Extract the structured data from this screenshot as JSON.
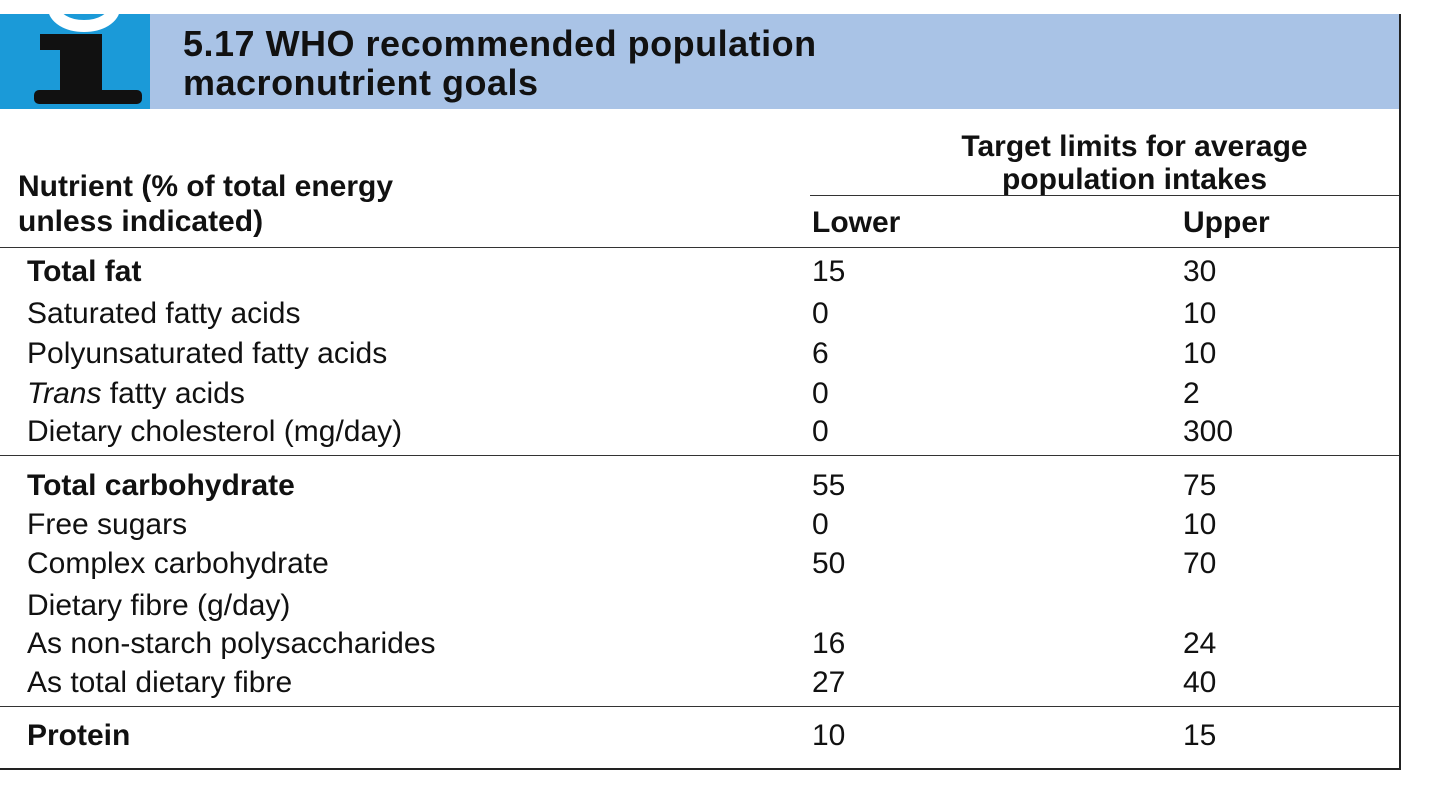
{
  "box": {
    "title_line1": "5.17  WHO recommended population",
    "title_line2": "macronutrient goals",
    "icon": "info-i-icon"
  },
  "table": {
    "nutrient_header_line1": "Nutrient (% of total energy",
    "nutrient_header_line2": "unless indicated)",
    "group_header_line1": "Target limits for average",
    "group_header_line2": "population intakes",
    "lower_header": "Lower",
    "upper_header": "Upper",
    "rows": [
      {
        "nutrient": "Total fat",
        "lower": "15",
        "upper": "30"
      },
      {
        "nutrient": "Saturated fatty acids",
        "lower": "0",
        "upper": "10"
      },
      {
        "nutrient": "Polyunsaturated fatty acids",
        "lower": "6",
        "upper": "10"
      },
      {
        "nutrient_italic": "Trans",
        "nutrient": " fatty acids",
        "lower": "0",
        "upper": "2"
      },
      {
        "nutrient": "Dietary cholesterol (mg/day)",
        "lower": "0",
        "upper": "300"
      },
      {
        "nutrient": "Total carbohydrate",
        "lower": "55",
        "upper": "75"
      },
      {
        "nutrient": "Free sugars",
        "lower": "0",
        "upper": "10"
      },
      {
        "nutrient": "Complex carbohydrate",
        "lower": "50",
        "upper": "70"
      },
      {
        "nutrient": "Dietary fibre (g/day)",
        "lower": "",
        "upper": ""
      },
      {
        "nutrient": "As non-starch polysaccharides",
        "lower": "16",
        "upper": "24"
      },
      {
        "nutrient": "As total dietary fibre",
        "lower": "27",
        "upper": "40"
      },
      {
        "nutrient": "Protein",
        "lower": "10",
        "upper": "15"
      }
    ]
  },
  "colors": {
    "header_band": "#a9c3e6",
    "icon_box": "#1b9ad8"
  }
}
